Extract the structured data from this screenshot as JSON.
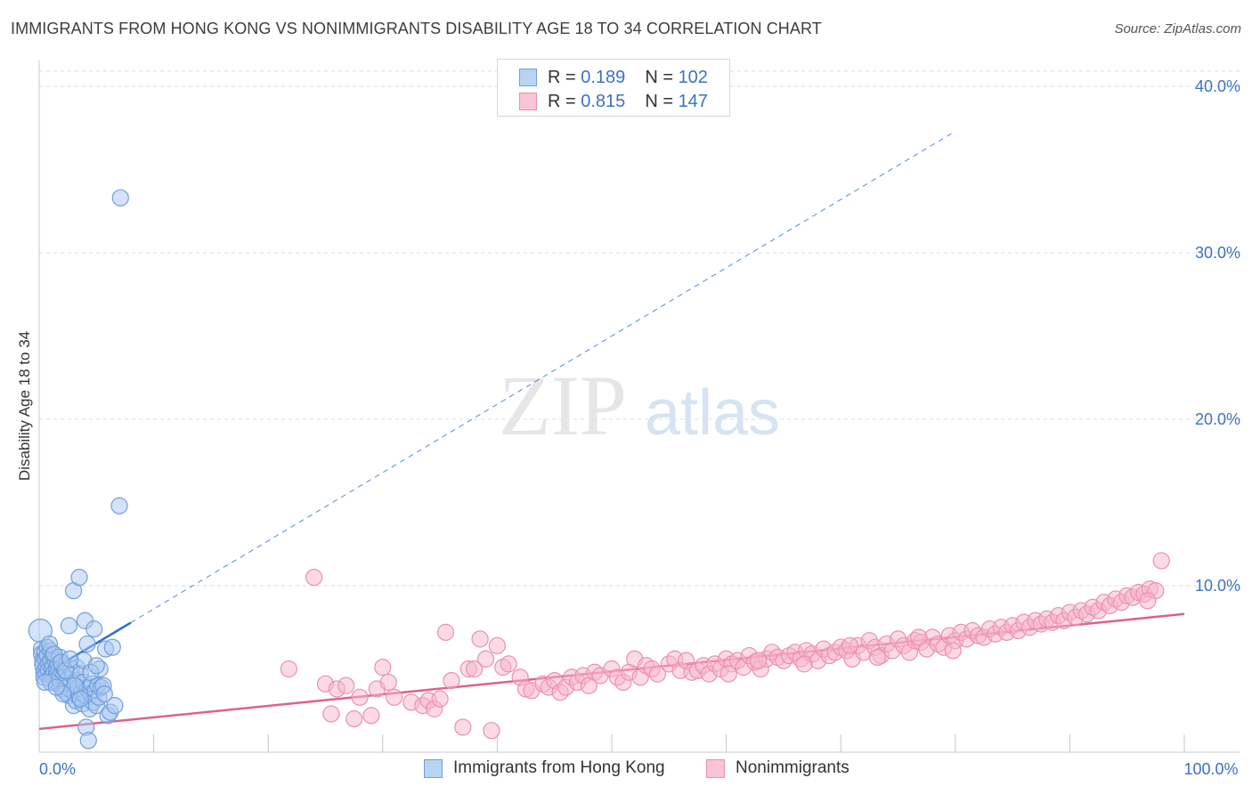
{
  "header": {
    "title": "IMMIGRANTS FROM HONG KONG VS NONIMMIGRANTS DISABILITY AGE 18 TO 34 CORRELATION CHART",
    "source": "Source: ZipAtlas.com"
  },
  "legend": {
    "rows": [
      {
        "r_label": "R =",
        "r_value": "0.189",
        "n_label": "N =",
        "n_value": "102"
      },
      {
        "r_label": "R =",
        "r_value": "0.815",
        "n_label": "N =",
        "n_value": "147"
      }
    ]
  },
  "watermark": {
    "zip": "ZIP",
    "atlas": "atlas"
  },
  "colors": {
    "blue_fill": "#a9c8f0",
    "blue_stroke": "#6f9fdc",
    "blue_line": "#2a6fcf",
    "pink_fill": "#f7b6cb",
    "pink_stroke": "#ec8fae",
    "pink_line": "#e0608a",
    "tick_text": "#3a72c8",
    "grid": "#dedede"
  },
  "chart_data": {
    "type": "scatter",
    "title": "IMMIGRANTS FROM HONG KONG VS NONIMMIGRANTS DISABILITY AGE 18 TO 34 CORRELATION CHART",
    "xlabel": "",
    "ylabel": "Disability Age 18 to 34",
    "xlim": [
      0,
      100
    ],
    "ylim": [
      0,
      40
    ],
    "x_tick_labels": [
      {
        "value": 0,
        "label": "0.0%"
      },
      {
        "value": 100,
        "label": "100.0%"
      }
    ],
    "y_tick_labels": [
      {
        "value": 10,
        "label": "10.0%"
      },
      {
        "value": 20,
        "label": "20.0%"
      },
      {
        "value": 30,
        "label": "30.0%"
      },
      {
        "value": 40,
        "label": "40.0%"
      }
    ],
    "series": [
      {
        "name": "Immigrants from Hong Kong",
        "color": "#a9c8f0",
        "r": 0.189,
        "n": 102,
        "trend": {
          "x0": 0,
          "y0": 4.5,
          "x1_solid": 8,
          "x1_dashed": 80,
          "slope": 0.41
        },
        "points": [
          [
            0.1,
            7.3
          ],
          [
            0.2,
            6.2
          ],
          [
            0.2,
            5.9
          ],
          [
            0.3,
            5.5
          ],
          [
            0.3,
            5.2
          ],
          [
            0.4,
            4.8
          ],
          [
            0.4,
            4.5
          ],
          [
            0.5,
            6.0
          ],
          [
            0.5,
            5.6
          ],
          [
            0.6,
            5.1
          ],
          [
            0.6,
            4.7
          ],
          [
            0.7,
            6.3
          ],
          [
            0.7,
            5.8
          ],
          [
            0.8,
            5.3
          ],
          [
            0.8,
            4.9
          ],
          [
            0.9,
            4.4
          ],
          [
            1.0,
            6.1
          ],
          [
            1.0,
            5.5
          ],
          [
            1.1,
            5.0
          ],
          [
            1.1,
            4.6
          ],
          [
            1.2,
            5.8
          ],
          [
            1.2,
            5.2
          ],
          [
            1.3,
            4.8
          ],
          [
            1.4,
            5.5
          ],
          [
            1.4,
            4.3
          ],
          [
            1.5,
            5.0
          ],
          [
            1.5,
            4.6
          ],
          [
            1.6,
            5.3
          ],
          [
            1.6,
            4.1
          ],
          [
            1.7,
            4.9
          ],
          [
            1.7,
            4.4
          ],
          [
            1.8,
            5.7
          ],
          [
            1.8,
            4.0
          ],
          [
            1.9,
            4.7
          ],
          [
            2.0,
            5.2
          ],
          [
            2.0,
            3.8
          ],
          [
            2.1,
            4.5
          ],
          [
            2.2,
            5.0
          ],
          [
            2.2,
            4.2
          ],
          [
            2.3,
            3.6
          ],
          [
            2.4,
            4.8
          ],
          [
            2.4,
            3.9
          ],
          [
            2.5,
            4.4
          ],
          [
            2.6,
            3.4
          ],
          [
            2.6,
            7.6
          ],
          [
            2.7,
            4.1
          ],
          [
            2.8,
            5.0
          ],
          [
            2.8,
            3.7
          ],
          [
            2.9,
            4.6
          ],
          [
            3.0,
            2.8
          ],
          [
            3.0,
            9.7
          ],
          [
            3.1,
            3.5
          ],
          [
            3.2,
            4.3
          ],
          [
            3.2,
            3.1
          ],
          [
            3.3,
            5.1
          ],
          [
            3.4,
            3.9
          ],
          [
            3.5,
            10.5
          ],
          [
            3.5,
            3.3
          ],
          [
            3.6,
            4.7
          ],
          [
            3.7,
            3.6
          ],
          [
            3.8,
            2.9
          ],
          [
            3.9,
            4.2
          ],
          [
            3.9,
            5.5
          ],
          [
            4.0,
            3.4
          ],
          [
            4.0,
            7.9
          ],
          [
            4.1,
            1.5
          ],
          [
            4.2,
            3.8
          ],
          [
            4.2,
            6.5
          ],
          [
            4.3,
            0.7
          ],
          [
            4.4,
            2.6
          ],
          [
            4.5,
            3.5
          ],
          [
            4.6,
            4.1
          ],
          [
            4.7,
            3.0
          ],
          [
            4.8,
            7.4
          ],
          [
            4.9,
            3.7
          ],
          [
            5.0,
            2.8
          ],
          [
            5.1,
            4.0
          ],
          [
            5.2,
            3.3
          ],
          [
            5.3,
            5.0
          ],
          [
            5.4,
            3.9
          ],
          [
            5.6,
            4.0
          ],
          [
            5.7,
            3.5
          ],
          [
            5.8,
            6.2
          ],
          [
            6.0,
            2.2
          ],
          [
            6.2,
            2.4
          ],
          [
            6.4,
            6.3
          ],
          [
            6.6,
            2.8
          ],
          [
            7.0,
            14.8
          ],
          [
            7.1,
            33.3
          ],
          [
            0.9,
            6.5
          ],
          [
            1.3,
            5.9
          ],
          [
            1.9,
            5.4
          ],
          [
            2.3,
            4.9
          ],
          [
            2.7,
            5.6
          ],
          [
            3.1,
            4.0
          ],
          [
            3.6,
            3.2
          ],
          [
            4.5,
            4.8
          ],
          [
            5.0,
            5.2
          ],
          [
            1.0,
            4.2
          ],
          [
            2.1,
            3.5
          ],
          [
            0.5,
            4.2
          ],
          [
            1.5,
            3.9
          ]
        ]
      },
      {
        "name": "Nonimmigrants",
        "color": "#f7b6cb",
        "r": 0.815,
        "n": 147,
        "trend": {
          "x0": 0,
          "y0": 1.4,
          "x1": 100,
          "y1": 8.3
        },
        "points": [
          [
            21.8,
            5.0
          ],
          [
            24.0,
            10.5
          ],
          [
            25.0,
            4.1
          ],
          [
            25.5,
            2.3
          ],
          [
            26.0,
            3.8
          ],
          [
            26.8,
            4.0
          ],
          [
            27.5,
            2.0
          ],
          [
            28.0,
            3.3
          ],
          [
            29.0,
            2.2
          ],
          [
            29.5,
            3.8
          ],
          [
            30.0,
            5.1
          ],
          [
            30.5,
            4.2
          ],
          [
            31.0,
            3.3
          ],
          [
            32.5,
            3.0
          ],
          [
            33.5,
            2.8
          ],
          [
            34.0,
            3.1
          ],
          [
            34.5,
            2.6
          ],
          [
            35.0,
            3.2
          ],
          [
            35.5,
            7.2
          ],
          [
            36.0,
            4.3
          ],
          [
            37.0,
            1.5
          ],
          [
            37.5,
            5.0
          ],
          [
            38.0,
            5.0
          ],
          [
            38.5,
            6.8
          ],
          [
            39.0,
            5.6
          ],
          [
            39.5,
            1.3
          ],
          [
            40.0,
            6.4
          ],
          [
            40.5,
            5.1
          ],
          [
            41.0,
            5.3
          ],
          [
            42.0,
            4.5
          ],
          [
            42.5,
            3.8
          ],
          [
            43.0,
            3.7
          ],
          [
            44.0,
            4.1
          ],
          [
            44.5,
            3.9
          ],
          [
            45.0,
            4.3
          ],
          [
            45.5,
            3.6
          ],
          [
            46.0,
            3.9
          ],
          [
            46.5,
            4.5
          ],
          [
            47.0,
            4.2
          ],
          [
            47.5,
            4.6
          ],
          [
            48.0,
            4.0
          ],
          [
            48.5,
            4.8
          ],
          [
            49.0,
            4.6
          ],
          [
            50.0,
            5.0
          ],
          [
            50.5,
            4.5
          ],
          [
            51.0,
            4.2
          ],
          [
            51.5,
            4.8
          ],
          [
            52.0,
            5.6
          ],
          [
            52.5,
            4.5
          ],
          [
            53.0,
            5.2
          ],
          [
            53.5,
            5.0
          ],
          [
            54.0,
            4.7
          ],
          [
            55.0,
            5.3
          ],
          [
            55.5,
            5.6
          ],
          [
            56.0,
            4.9
          ],
          [
            56.5,
            5.5
          ],
          [
            57.0,
            4.8
          ],
          [
            57.5,
            4.9
          ],
          [
            58.0,
            5.2
          ],
          [
            58.5,
            4.7
          ],
          [
            59.0,
            5.3
          ],
          [
            59.5,
            5.0
          ],
          [
            60.0,
            5.6
          ],
          [
            60.5,
            5.3
          ],
          [
            61.0,
            5.5
          ],
          [
            61.5,
            5.1
          ],
          [
            62.0,
            5.8
          ],
          [
            62.5,
            5.4
          ],
          [
            63.0,
            5.0
          ],
          [
            63.5,
            5.6
          ],
          [
            64.0,
            6.0
          ],
          [
            64.5,
            5.7
          ],
          [
            65.0,
            5.5
          ],
          [
            65.5,
            5.8
          ],
          [
            66.0,
            6.0
          ],
          [
            66.5,
            5.6
          ],
          [
            67.0,
            6.1
          ],
          [
            67.5,
            5.9
          ],
          [
            68.0,
            5.5
          ],
          [
            68.5,
            6.2
          ],
          [
            69.0,
            5.8
          ],
          [
            69.5,
            6.0
          ],
          [
            70.0,
            6.3
          ],
          [
            70.5,
            6.1
          ],
          [
            71.0,
            5.6
          ],
          [
            71.5,
            6.4
          ],
          [
            72.0,
            6.0
          ],
          [
            72.5,
            6.7
          ],
          [
            73.0,
            6.3
          ],
          [
            73.5,
            5.8
          ],
          [
            74.0,
            6.5
          ],
          [
            74.5,
            6.1
          ],
          [
            75.0,
            6.8
          ],
          [
            75.5,
            6.4
          ],
          [
            76.0,
            6.0
          ],
          [
            76.5,
            6.7
          ],
          [
            77.0,
            6.6
          ],
          [
            77.5,
            6.2
          ],
          [
            78.0,
            6.9
          ],
          [
            78.5,
            6.5
          ],
          [
            79.0,
            6.3
          ],
          [
            79.5,
            7.0
          ],
          [
            80.0,
            6.7
          ],
          [
            80.5,
            7.2
          ],
          [
            81.0,
            6.8
          ],
          [
            81.5,
            7.3
          ],
          [
            82.0,
            7.0
          ],
          [
            82.5,
            6.9
          ],
          [
            83.0,
            7.4
          ],
          [
            83.5,
            7.1
          ],
          [
            84.0,
            7.5
          ],
          [
            84.5,
            7.2
          ],
          [
            85.0,
            7.6
          ],
          [
            85.5,
            7.3
          ],
          [
            86.0,
            7.8
          ],
          [
            86.5,
            7.5
          ],
          [
            87.0,
            7.9
          ],
          [
            87.5,
            7.7
          ],
          [
            88.0,
            8.0
          ],
          [
            88.5,
            7.8
          ],
          [
            89.0,
            8.2
          ],
          [
            89.5,
            7.9
          ],
          [
            90.0,
            8.4
          ],
          [
            90.5,
            8.1
          ],
          [
            91.0,
            8.5
          ],
          [
            91.5,
            8.3
          ],
          [
            92.0,
            8.7
          ],
          [
            92.5,
            8.5
          ],
          [
            93.0,
            9.0
          ],
          [
            93.5,
            8.8
          ],
          [
            94.0,
            9.2
          ],
          [
            94.5,
            9.0
          ],
          [
            95.0,
            9.4
          ],
          [
            95.5,
            9.3
          ],
          [
            96.0,
            9.6
          ],
          [
            96.5,
            9.5
          ],
          [
            97.0,
            9.8
          ],
          [
            97.5,
            9.7
          ],
          [
            98.0,
            11.5
          ],
          [
            96.8,
            9.1
          ],
          [
            60.2,
            4.7
          ],
          [
            62.8,
            5.5
          ],
          [
            66.8,
            5.3
          ],
          [
            70.8,
            6.4
          ],
          [
            73.2,
            5.7
          ],
          [
            76.8,
            6.9
          ],
          [
            79.8,
            6.1
          ]
        ]
      }
    ]
  },
  "bottom_legend": {
    "items": [
      {
        "label": "Immigrants from Hong Kong"
      },
      {
        "label": "Nonimmigrants"
      }
    ]
  }
}
